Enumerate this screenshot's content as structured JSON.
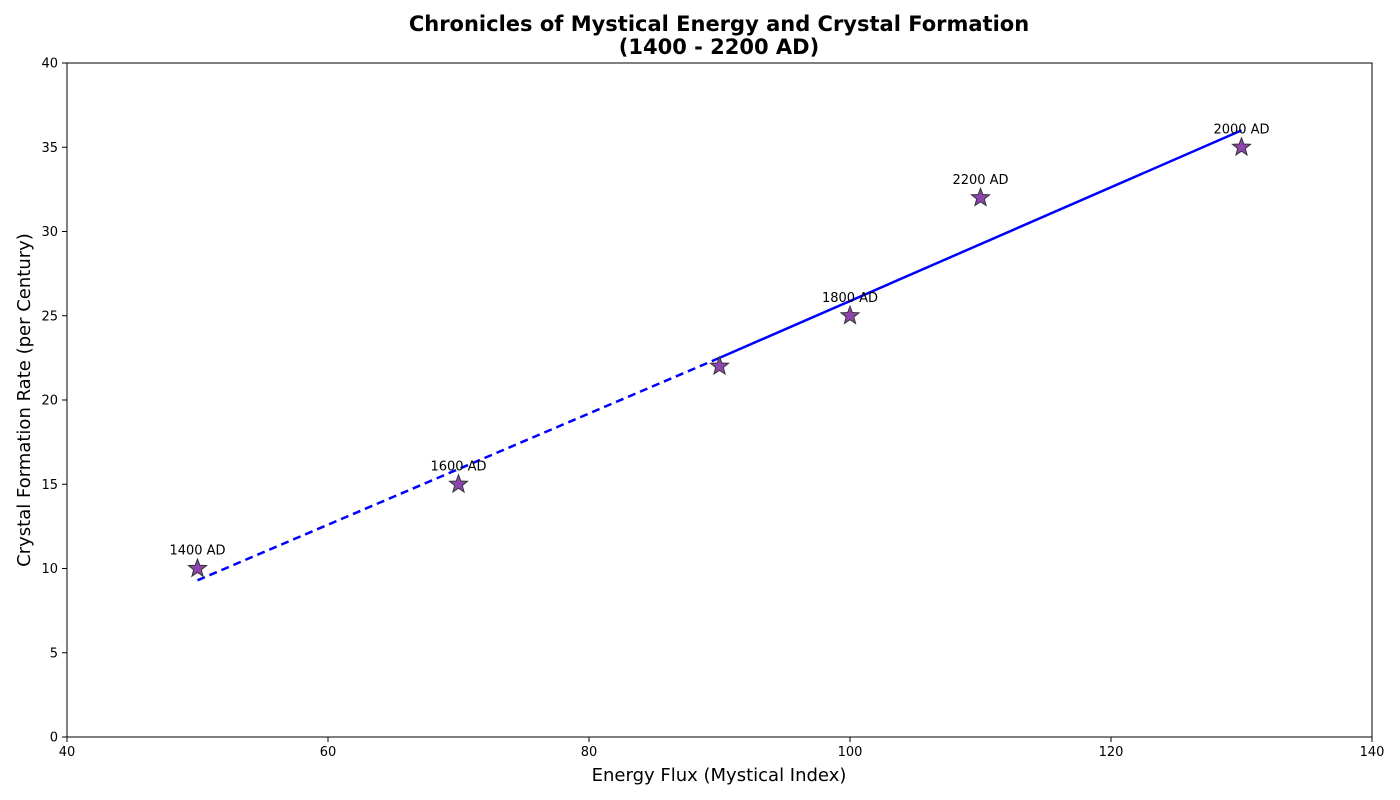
{
  "chart_data": {
    "type": "scatter",
    "title": [
      "Chronicles of Mystical Energy and Crystal Formation",
      "(1400 - 2200 AD)"
    ],
    "xlabel": "Energy Flux (Mystical Index)",
    "ylabel": "Crystal Formation Rate (per Century)",
    "xlim": [
      40,
      140
    ],
    "ylim": [
      0,
      40
    ],
    "xticks": [
      40,
      60,
      80,
      100,
      120,
      140
    ],
    "yticks": [
      0,
      5,
      10,
      15,
      20,
      25,
      30,
      35,
      40
    ],
    "grid": false,
    "points": [
      {
        "x": 50,
        "y": 10,
        "label": "1400 AD"
      },
      {
        "x": 70,
        "y": 15,
        "label": "1600 AD"
      },
      {
        "x": 90,
        "y": 22,
        "label": ""
      },
      {
        "x": 100,
        "y": 25,
        "label": "1800 AD"
      },
      {
        "x": 110,
        "y": 32,
        "label": "2200 AD"
      },
      {
        "x": 130,
        "y": 35,
        "label": "2000 AD"
      }
    ],
    "marker": {
      "shape": "star",
      "color": "#8e44ad",
      "edge_color": "#333333"
    },
    "lines": [
      {
        "style": "dashed",
        "color": "#0000ff",
        "x": [
          50,
          90
        ],
        "y": [
          9.3,
          22.5
        ]
      },
      {
        "style": "solid",
        "color": "#0000ff",
        "x": [
          90,
          130
        ],
        "y": [
          22.5,
          36
        ]
      }
    ]
  }
}
